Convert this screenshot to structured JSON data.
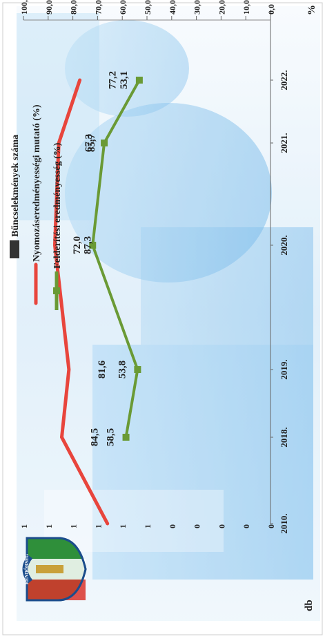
{
  "chart_data": {
    "type": "line",
    "orientation": "rotated-90-cw",
    "title": "",
    "xlabel": "",
    "ylabel_left": "db",
    "ylabel_right": "%",
    "categories": [
      "2010.",
      "2018.",
      "2019.",
      "2020.",
      "2021.",
      "2022."
    ],
    "left_axis_ticks": [
      "1",
      "1",
      "1",
      "1",
      "1",
      "1",
      "0",
      "0",
      "0",
      "0",
      "0"
    ],
    "right_axis_ticks": [
      "100,0",
      "90,0",
      "80,0",
      "70,0",
      "60,0",
      "50,0",
      "40,0",
      "30,0",
      "20,0",
      "10,0",
      "0,0"
    ],
    "ylim_right": [
      0,
      100
    ],
    "legend_position": "top",
    "grid": false,
    "series": [
      {
        "name": "Bűncselekmények száma",
        "type": "bar",
        "color": "#333333",
        "values": [
          null,
          null,
          null,
          null,
          null,
          null
        ],
        "labels": [
          "",
          "",
          "",
          "",
          "",
          ""
        ]
      },
      {
        "name": "Nyomozáseredményességi mutató (%)",
        "type": "line",
        "color": "#e8453c",
        "values": [
          66.0,
          84.5,
          81.6,
          87.3,
          85.7,
          77.2
        ],
        "labels": [
          "",
          "84,5",
          "81,6",
          "87,3",
          "85,7",
          "77,2"
        ]
      },
      {
        "name": "Felderítési eredményesség (%)",
        "type": "line",
        "color": "#6a9a35",
        "values": [
          null,
          58.5,
          53.8,
          72.0,
          67.3,
          53.1
        ],
        "labels": [
          "",
          "58,5",
          "53,8",
          "72,0",
          "67,3",
          "53,1"
        ]
      }
    ]
  },
  "logo": {
    "text": "RENDŐRSÉG",
    "name": "police-emblem"
  }
}
